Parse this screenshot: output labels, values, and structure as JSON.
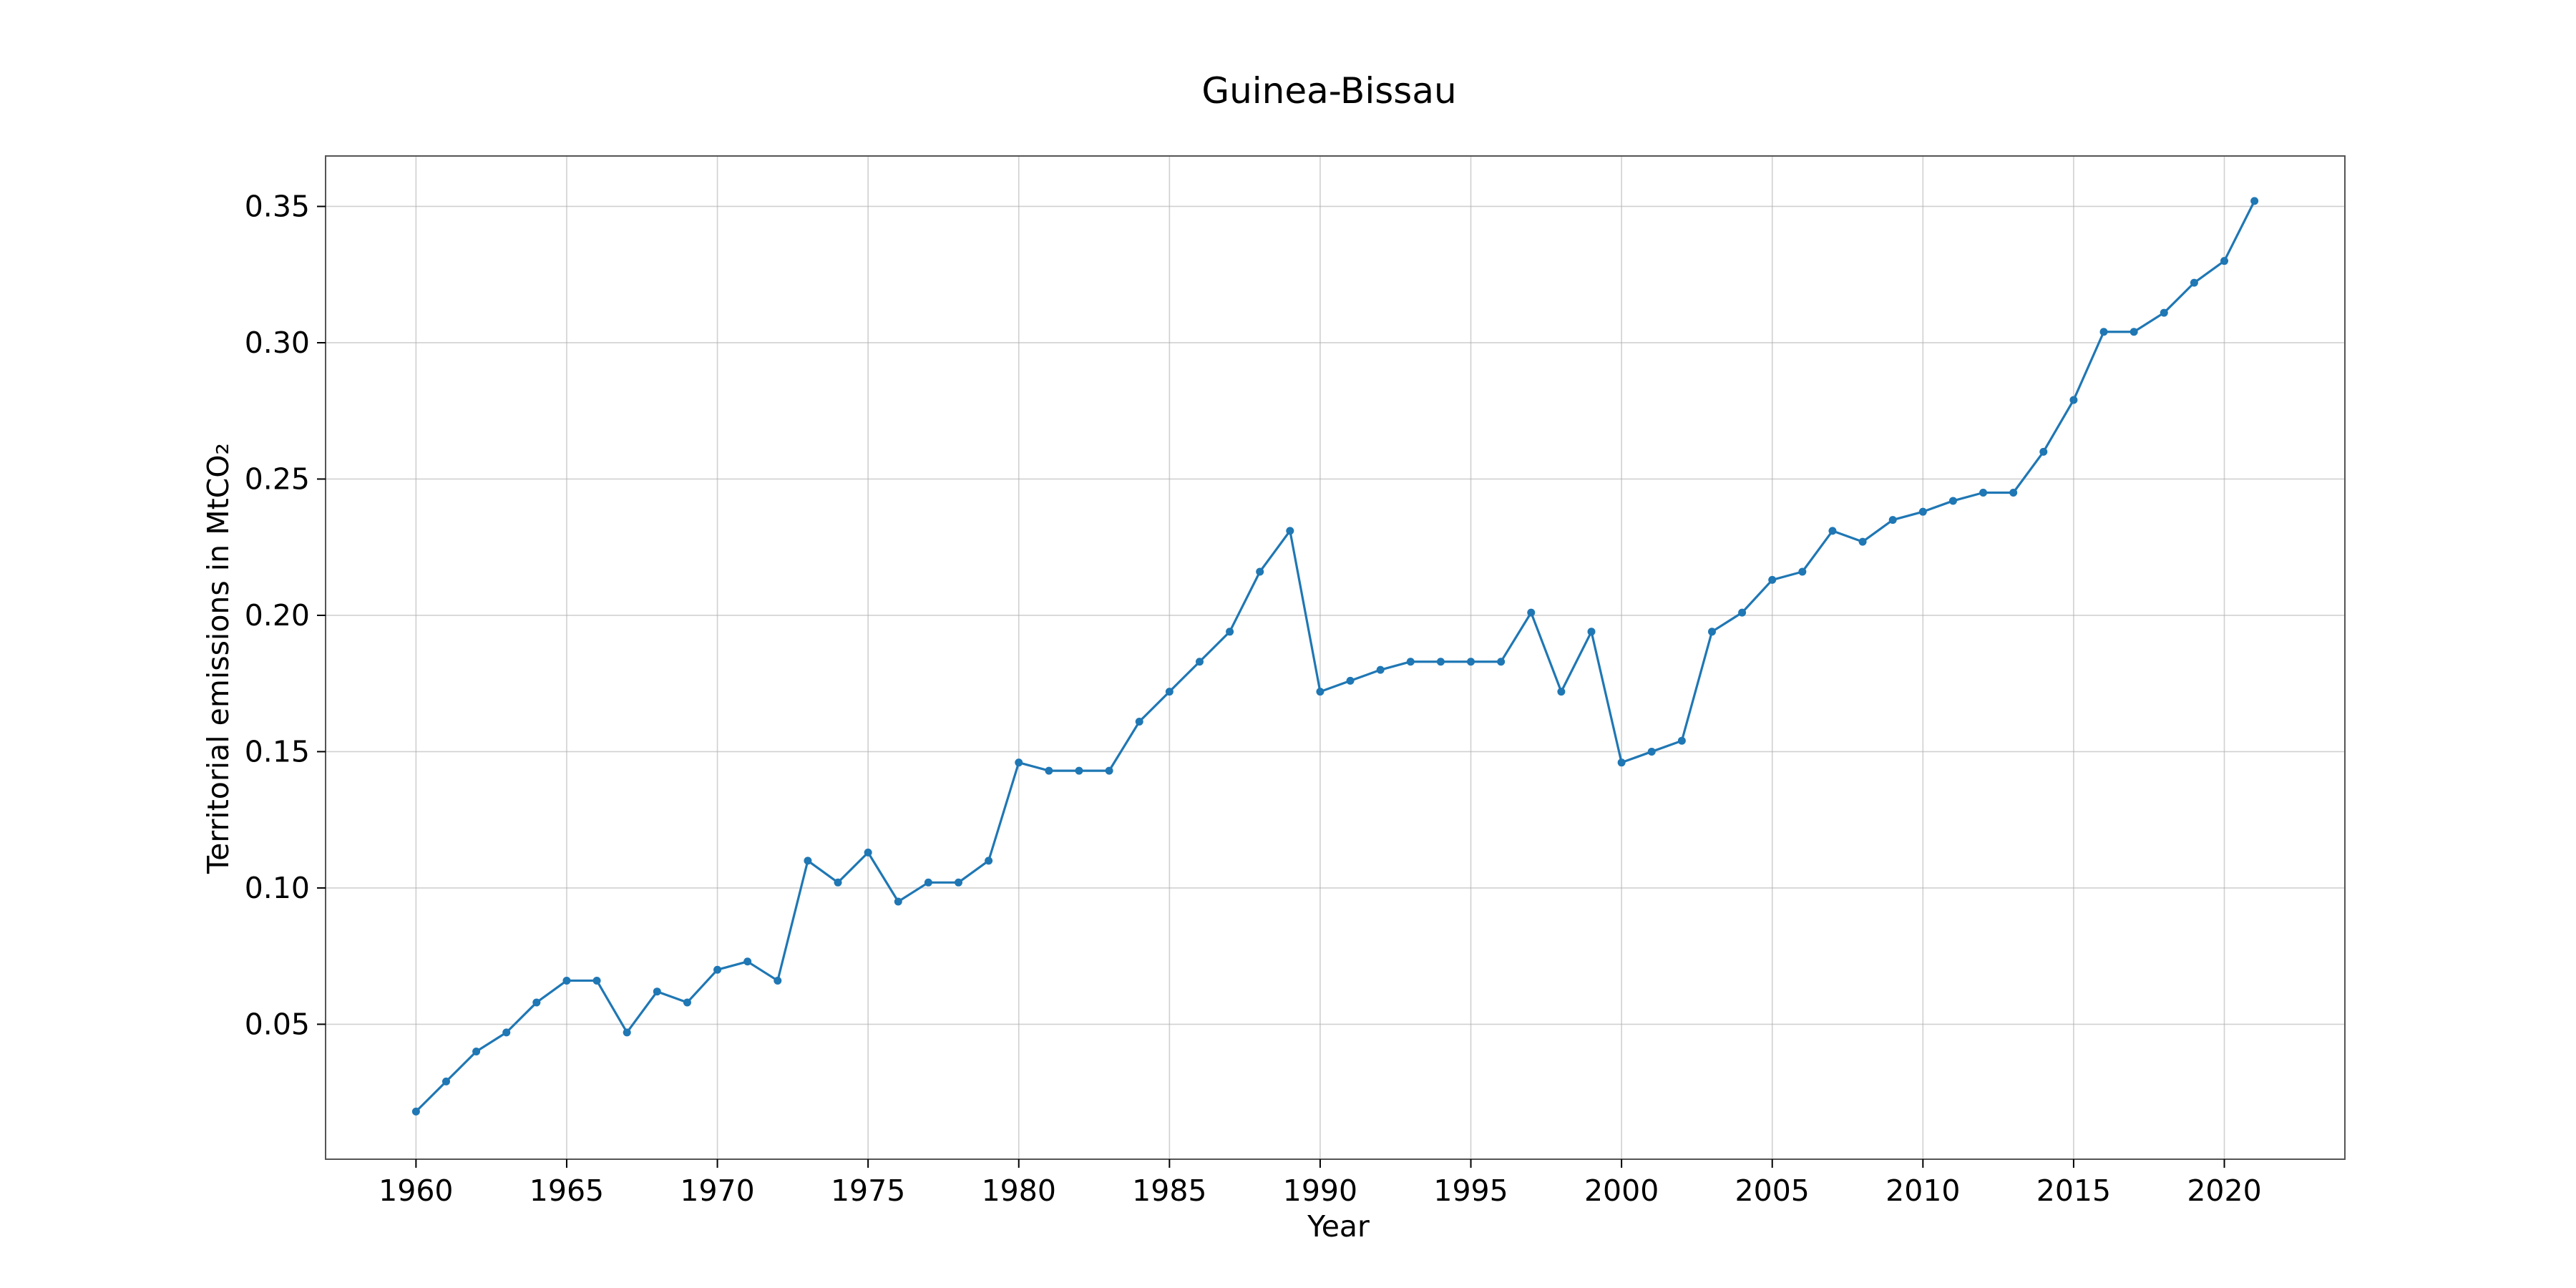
{
  "chart_data": {
    "type": "line",
    "title": "Guinea-Bissau",
    "xlabel": "Year",
    "ylabel": "Territorial emissions in MtCO₂",
    "xlim": [
      1957,
      2024
    ],
    "ylim": [
      0.0005,
      0.3685
    ],
    "grid": true,
    "x_ticks": [
      1960,
      1965,
      1970,
      1975,
      1980,
      1985,
      1990,
      1995,
      2000,
      2005,
      2010,
      2015,
      2020
    ],
    "x_tick_labels": [
      "1960",
      "1965",
      "1970",
      "1975",
      "1980",
      "1985",
      "1990",
      "1995",
      "2000",
      "2005",
      "2010",
      "2015",
      "2020"
    ],
    "y_ticks": [
      0.05,
      0.1,
      0.15,
      0.2,
      0.25,
      0.3,
      0.35
    ],
    "y_tick_labels": [
      "0.05",
      "0.10",
      "0.15",
      "0.20",
      "0.25",
      "0.30",
      "0.35"
    ],
    "series_color": "#1f77b4",
    "x": [
      1960,
      1961,
      1962,
      1963,
      1964,
      1965,
      1966,
      1967,
      1968,
      1969,
      1970,
      1971,
      1972,
      1973,
      1974,
      1975,
      1976,
      1977,
      1978,
      1979,
      1980,
      1981,
      1982,
      1983,
      1984,
      1985,
      1986,
      1987,
      1988,
      1989,
      1990,
      1991,
      1992,
      1993,
      1994,
      1995,
      1996,
      1997,
      1998,
      1999,
      2000,
      2001,
      2002,
      2003,
      2004,
      2005,
      2006,
      2007,
      2008,
      2009,
      2010,
      2011,
      2012,
      2013,
      2014,
      2015,
      2016,
      2017,
      2018,
      2019,
      2020,
      2021
    ],
    "y": [
      0.018,
      0.029,
      0.04,
      0.047,
      0.058,
      0.066,
      0.066,
      0.047,
      0.062,
      0.058,
      0.07,
      0.073,
      0.066,
      0.11,
      0.102,
      0.113,
      0.095,
      0.102,
      0.102,
      0.11,
      0.146,
      0.143,
      0.143,
      0.143,
      0.161,
      0.172,
      0.183,
      0.194,
      0.216,
      0.231,
      0.172,
      0.176,
      0.18,
      0.183,
      0.183,
      0.183,
      0.183,
      0.201,
      0.172,
      0.194,
      0.146,
      0.15,
      0.154,
      0.194,
      0.201,
      0.213,
      0.216,
      0.231,
      0.227,
      0.235,
      0.238,
      0.242,
      0.245,
      0.245,
      0.26,
      0.279,
      0.304,
      0.304,
      0.311,
      0.322,
      0.33,
      0.352
    ]
  }
}
